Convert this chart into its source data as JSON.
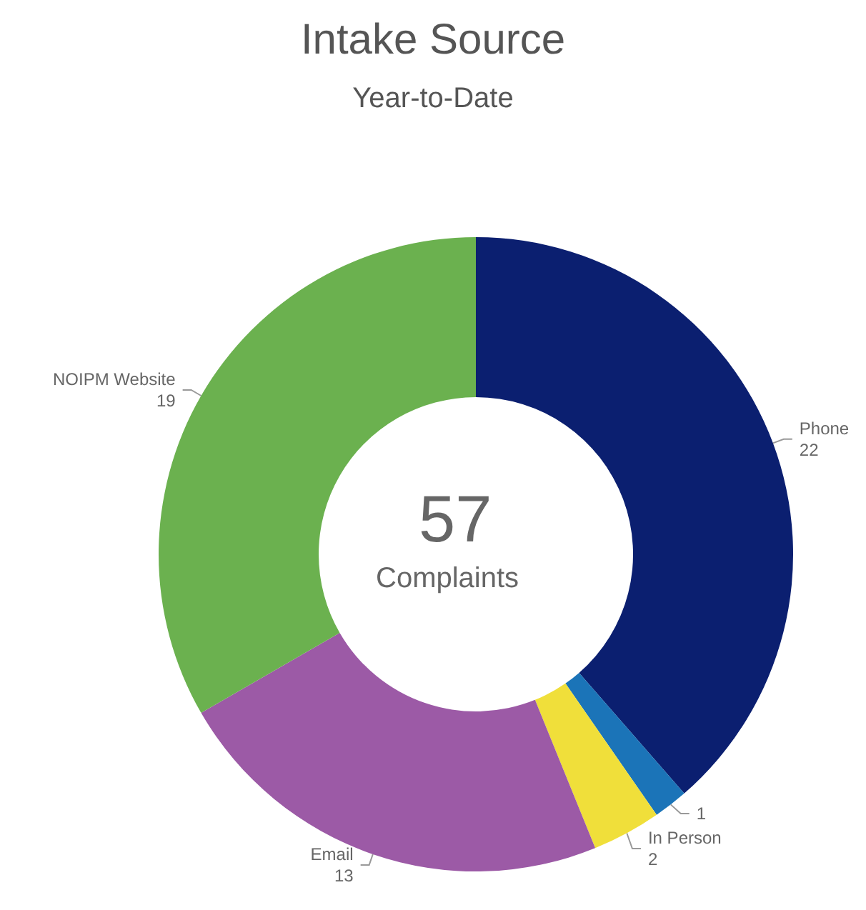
{
  "chart_data": {
    "type": "donut",
    "title": "Intake Source",
    "subtitle": "Year-to-Date",
    "categories": [
      "Phone",
      null,
      "In Person",
      "Email",
      "NOIPM Website"
    ],
    "values": [
      22,
      1,
      2,
      13,
      19
    ],
    "colors": [
      "#0b1f70",
      "#1b74b8",
      "#f0df3a",
      "#9c5aa6",
      "#6bb14f"
    ],
    "data_labels": true,
    "legend": false,
    "annotations": [
      "57",
      "Complaints"
    ]
  }
}
